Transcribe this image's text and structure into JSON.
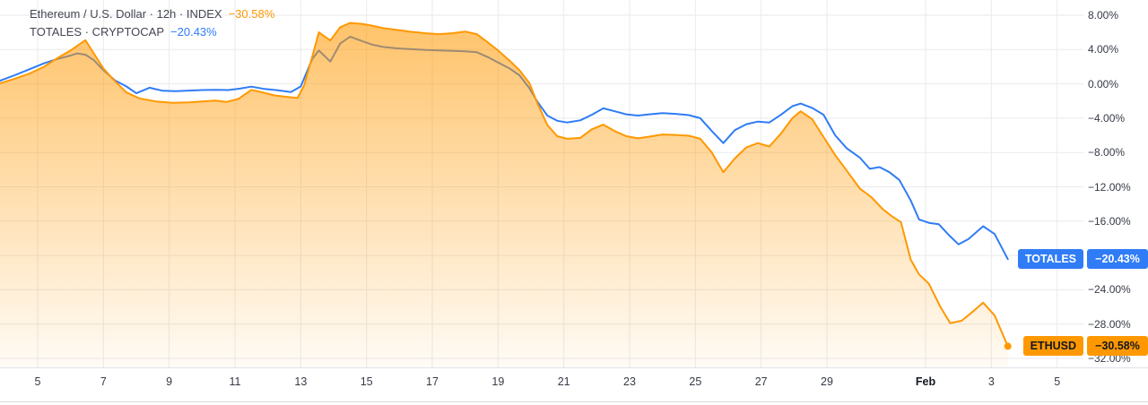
{
  "legend": {
    "line1": {
      "title": "Ethereum / U.S. Dollar · 12h · INDEX",
      "value": "−30.58%",
      "value_color": "#ff9800"
    },
    "line2": {
      "title": "TOTALES · CRYPTOCAP",
      "value": "−20.43%",
      "value_color": "#2f7cf6"
    }
  },
  "badges": {
    "totales": {
      "name": "TOTALES",
      "value": "−20.43%"
    },
    "ethusd": {
      "name": "ETHUSD",
      "value": "−30.58%"
    }
  },
  "colors": {
    "ethusd_line": "#ff9800",
    "totales_line": "#2f7cf6",
    "grid": "#e9eaec",
    "pane_border": "#e0e3eb",
    "bottom_border": "#d7dadf",
    "axis_text": "#363a45"
  },
  "chart_data": {
    "type": "line",
    "title": "Ethereum / U.S. Dollar compare chart (percent change)",
    "timeframe": "12h",
    "x_axis": {
      "unit": "date (Jan 4 – Feb 5, day index; Feb d = 31+d)",
      "ticks": [
        {
          "day": 5,
          "label": "5"
        },
        {
          "day": 7,
          "label": "7"
        },
        {
          "day": 9,
          "label": "9"
        },
        {
          "day": 11,
          "label": "11"
        },
        {
          "day": 13,
          "label": "13"
        },
        {
          "day": 15,
          "label": "15"
        },
        {
          "day": 17,
          "label": "17"
        },
        {
          "day": 19,
          "label": "19"
        },
        {
          "day": 21,
          "label": "21"
        },
        {
          "day": 23,
          "label": "23"
        },
        {
          "day": 25,
          "label": "25"
        },
        {
          "day": 27,
          "label": "27"
        },
        {
          "day": 29,
          "label": "29"
        },
        {
          "day": 32,
          "label": "Feb",
          "bold": true
        },
        {
          "day": 34,
          "label": "3"
        },
        {
          "day": 36,
          "label": "5"
        }
      ]
    },
    "y_axis": {
      "unit": "percent",
      "range": [
        -33.8,
        8.8
      ],
      "ticks": [
        {
          "value": 8,
          "label": "8.00%"
        },
        {
          "value": 4,
          "label": "4.00%"
        },
        {
          "value": 0,
          "label": "0.00%"
        },
        {
          "value": -4,
          "label": "−4.00%"
        },
        {
          "value": -8,
          "label": "−8.00%"
        },
        {
          "value": -12,
          "label": "−12.00%"
        },
        {
          "value": -16,
          "label": "−16.00%"
        },
        {
          "value": -20,
          "label": "−20.00%"
        },
        {
          "value": -24,
          "label": "−24.00%"
        },
        {
          "value": -28,
          "label": "−28.00%"
        },
        {
          "value": -32,
          "label": "−32.00%"
        }
      ]
    },
    "series": [
      {
        "id": "totales",
        "name": "TOTALES · CRYPTOCAP",
        "style": "line",
        "color": "#2f7cf6",
        "last_value": -20.43,
        "points": [
          [
            3.85,
            0.35
          ],
          [
            4.3,
            1.0
          ],
          [
            4.75,
            1.7
          ],
          [
            5.2,
            2.4
          ],
          [
            5.6,
            2.9
          ],
          [
            6.0,
            3.3
          ],
          [
            6.2,
            3.55
          ],
          [
            6.45,
            3.4
          ],
          [
            6.7,
            2.8
          ],
          [
            7.0,
            1.6
          ],
          [
            7.35,
            0.4
          ],
          [
            7.7,
            -0.3
          ],
          [
            8.0,
            -1.1
          ],
          [
            8.4,
            -0.45
          ],
          [
            8.8,
            -0.8
          ],
          [
            9.2,
            -0.85
          ],
          [
            9.6,
            -0.78
          ],
          [
            10.0,
            -0.72
          ],
          [
            10.4,
            -0.7
          ],
          [
            10.8,
            -0.72
          ],
          [
            11.15,
            -0.55
          ],
          [
            11.5,
            -0.32
          ],
          [
            11.9,
            -0.6
          ],
          [
            12.3,
            -0.75
          ],
          [
            12.7,
            -0.95
          ],
          [
            13.0,
            -0.3
          ],
          [
            13.35,
            2.9
          ],
          [
            13.55,
            3.9
          ],
          [
            13.9,
            2.6
          ],
          [
            14.2,
            4.7
          ],
          [
            14.5,
            5.5
          ],
          [
            14.85,
            5.0
          ],
          [
            15.15,
            4.6
          ],
          [
            15.5,
            4.3
          ],
          [
            15.9,
            4.15
          ],
          [
            16.3,
            4.05
          ],
          [
            16.8,
            3.95
          ],
          [
            17.2,
            3.9
          ],
          [
            17.6,
            3.85
          ],
          [
            18.0,
            3.8
          ],
          [
            18.35,
            3.7
          ],
          [
            18.7,
            3.1
          ],
          [
            19.0,
            2.5
          ],
          [
            19.35,
            1.8
          ],
          [
            19.65,
            1.0
          ],
          [
            19.95,
            -0.5
          ],
          [
            20.2,
            -2.1
          ],
          [
            20.5,
            -3.7
          ],
          [
            20.8,
            -4.3
          ],
          [
            21.1,
            -4.5
          ],
          [
            21.5,
            -4.25
          ],
          [
            21.85,
            -3.6
          ],
          [
            22.2,
            -2.85
          ],
          [
            22.55,
            -3.2
          ],
          [
            22.9,
            -3.55
          ],
          [
            23.25,
            -3.7
          ],
          [
            23.6,
            -3.55
          ],
          [
            24.0,
            -3.4
          ],
          [
            24.4,
            -3.5
          ],
          [
            24.8,
            -3.65
          ],
          [
            25.15,
            -4.0
          ],
          [
            25.5,
            -5.5
          ],
          [
            25.85,
            -6.9
          ],
          [
            26.2,
            -5.4
          ],
          [
            26.55,
            -4.7
          ],
          [
            26.9,
            -4.4
          ],
          [
            27.25,
            -4.5
          ],
          [
            27.6,
            -3.6
          ],
          [
            27.95,
            -2.6
          ],
          [
            28.2,
            -2.3
          ],
          [
            28.55,
            -2.8
          ],
          [
            28.9,
            -3.6
          ],
          [
            29.25,
            -6.0
          ],
          [
            29.6,
            -7.5
          ],
          [
            30.0,
            -8.6
          ],
          [
            30.3,
            -9.9
          ],
          [
            30.6,
            -9.7
          ],
          [
            30.9,
            -10.3
          ],
          [
            31.2,
            -11.2
          ],
          [
            31.55,
            -13.6
          ],
          [
            31.8,
            -15.8
          ],
          [
            32.1,
            -16.2
          ],
          [
            32.4,
            -16.35
          ],
          [
            32.7,
            -17.6
          ],
          [
            33.0,
            -18.7
          ],
          [
            33.3,
            -18.1
          ],
          [
            33.75,
            -16.6
          ],
          [
            34.1,
            -17.5
          ],
          [
            34.5,
            -20.43
          ]
        ]
      },
      {
        "id": "ethusd",
        "name": "ETHUSD · INDEX",
        "style": "area",
        "color": "#ff9800",
        "last_value": -30.58,
        "points": [
          [
            3.85,
            0.05
          ],
          [
            4.3,
            0.6
          ],
          [
            4.75,
            1.2
          ],
          [
            5.2,
            2.0
          ],
          [
            5.6,
            3.0
          ],
          [
            6.0,
            3.9
          ],
          [
            6.45,
            5.1
          ],
          [
            6.7,
            3.6
          ],
          [
            7.0,
            1.8
          ],
          [
            7.35,
            0.3
          ],
          [
            7.7,
            -1.0
          ],
          [
            8.1,
            -1.7
          ],
          [
            8.6,
            -2.05
          ],
          [
            9.1,
            -2.2
          ],
          [
            9.6,
            -2.15
          ],
          [
            10.0,
            -2.05
          ],
          [
            10.4,
            -1.95
          ],
          [
            10.75,
            -2.1
          ],
          [
            11.1,
            -1.75
          ],
          [
            11.5,
            -0.7
          ],
          [
            11.85,
            -1.0
          ],
          [
            12.2,
            -1.35
          ],
          [
            12.55,
            -1.5
          ],
          [
            12.9,
            -1.65
          ],
          [
            13.1,
            -0.2
          ],
          [
            13.35,
            3.2
          ],
          [
            13.55,
            6.0
          ],
          [
            13.9,
            5.05
          ],
          [
            14.2,
            6.6
          ],
          [
            14.5,
            7.1
          ],
          [
            14.85,
            7.0
          ],
          [
            15.15,
            6.8
          ],
          [
            15.5,
            6.5
          ],
          [
            15.9,
            6.3
          ],
          [
            16.3,
            6.1
          ],
          [
            16.8,
            5.9
          ],
          [
            17.2,
            5.8
          ],
          [
            17.6,
            5.9
          ],
          [
            18.0,
            6.1
          ],
          [
            18.35,
            5.8
          ],
          [
            18.7,
            4.8
          ],
          [
            19.0,
            3.9
          ],
          [
            19.35,
            2.7
          ],
          [
            19.65,
            1.6
          ],
          [
            19.95,
            0.1
          ],
          [
            20.2,
            -2.3
          ],
          [
            20.5,
            -4.8
          ],
          [
            20.8,
            -6.1
          ],
          [
            21.1,
            -6.4
          ],
          [
            21.5,
            -6.3
          ],
          [
            21.85,
            -5.3
          ],
          [
            22.2,
            -4.75
          ],
          [
            22.55,
            -5.5
          ],
          [
            22.9,
            -6.1
          ],
          [
            23.25,
            -6.35
          ],
          [
            23.6,
            -6.15
          ],
          [
            24.0,
            -5.9
          ],
          [
            24.4,
            -5.95
          ],
          [
            24.8,
            -6.05
          ],
          [
            25.15,
            -6.4
          ],
          [
            25.5,
            -8.0
          ],
          [
            25.85,
            -10.3
          ],
          [
            26.2,
            -8.7
          ],
          [
            26.55,
            -7.4
          ],
          [
            26.9,
            -6.9
          ],
          [
            27.25,
            -7.3
          ],
          [
            27.6,
            -5.8
          ],
          [
            27.95,
            -4.0
          ],
          [
            28.2,
            -3.2
          ],
          [
            28.55,
            -4.1
          ],
          [
            28.9,
            -6.2
          ],
          [
            29.25,
            -8.3
          ],
          [
            29.6,
            -10.1
          ],
          [
            30.0,
            -12.2
          ],
          [
            30.35,
            -13.2
          ],
          [
            30.7,
            -14.6
          ],
          [
            31.0,
            -15.5
          ],
          [
            31.25,
            -16.1
          ],
          [
            31.55,
            -20.5
          ],
          [
            31.8,
            -22.2
          ],
          [
            32.1,
            -23.3
          ],
          [
            32.45,
            -26.0
          ],
          [
            32.75,
            -27.9
          ],
          [
            33.1,
            -27.6
          ],
          [
            33.45,
            -26.5
          ],
          [
            33.75,
            -25.5
          ],
          [
            34.1,
            -27.0
          ],
          [
            34.5,
            -30.58
          ]
        ]
      }
    ],
    "legend_position": "top-left",
    "grid": true
  }
}
